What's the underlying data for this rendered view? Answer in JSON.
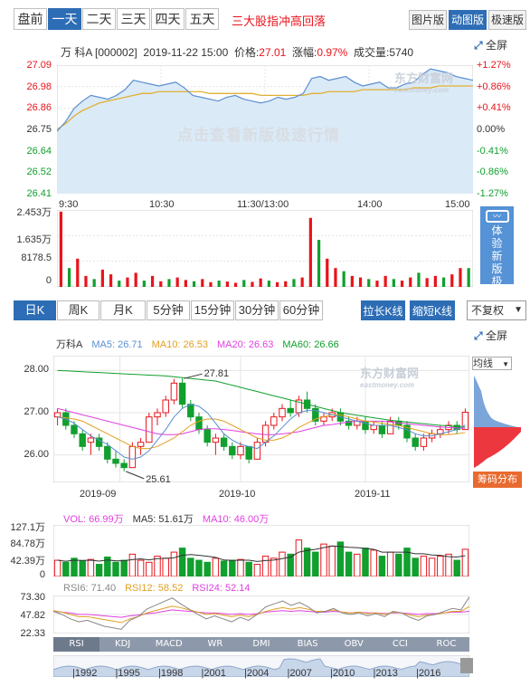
{
  "top_tabs": [
    {
      "label": "盘前",
      "active": false
    },
    {
      "label": "一天",
      "active": true
    },
    {
      "label": "二天",
      "active": false
    },
    {
      "label": "三天",
      "active": false
    },
    {
      "label": "四天",
      "active": false
    },
    {
      "label": "五天",
      "active": false
    }
  ],
  "headline": "三大股指冲高回落",
  "right_buttons": [
    {
      "label": "图片版",
      "active": false
    },
    {
      "label": "动图版",
      "active": true
    },
    {
      "label": "极速版",
      "active": false
    }
  ],
  "fullscreen": "全屏",
  "quote": {
    "name": "万 科A [000002]",
    "datetime": "2019-11-22 15:00",
    "price_label": "价格:",
    "price": "27.01",
    "change_label": "涨幅:",
    "change": "0.97%",
    "volume_label": "成交量:",
    "volume": "5740"
  },
  "watermark_logo": "东方财富网",
  "watermark_logo_sub": "eastmoney.com",
  "watermark_ad": "点击查看新版极速行情",
  "side_ad": "体验新版极速行情",
  "colors": {
    "up": "#e8141b",
    "down": "#119f2e",
    "line": "#5b8fd1",
    "avg": "#e0b030",
    "accent": "#2d6db5"
  },
  "chart_data": [
    {
      "type": "line",
      "name": "intraday",
      "y_ticks_left": [
        "27.09",
        "26.98",
        "26.86",
        "26.75",
        "26.64",
        "26.52",
        "26.41"
      ],
      "y_ticks_right": [
        "+1.27%",
        "+0.86%",
        "+0.41%",
        "0.00%",
        "-0.41%",
        "-0.86%",
        "-1.27%"
      ],
      "x_ticks": [
        "9:30",
        "10:30",
        "11:30/13:00",
        "14:00",
        "15:00"
      ],
      "ylim": [
        26.41,
        27.09
      ],
      "prev_close": 26.75,
      "price": [
        26.74,
        26.79,
        26.86,
        26.9,
        26.93,
        26.92,
        26.91,
        26.93,
        26.96,
        27.01,
        27.0,
        26.99,
        26.98,
        26.99,
        27.0,
        26.97,
        26.93,
        26.92,
        26.91,
        26.9,
        26.92,
        26.93,
        26.91,
        26.9,
        26.89,
        26.9,
        26.92,
        26.91,
        26.92,
        26.94,
        27.02,
        27.03,
        27.01,
        27.02,
        27.03,
        27.0,
        26.98,
        26.99,
        27.0,
        26.97,
        26.97,
        26.99,
        27.0,
        27.04,
        27.07,
        27.06,
        27.05,
        27.03,
        27.02,
        27.01
      ],
      "avg": [
        26.75,
        26.78,
        26.82,
        26.85,
        26.87,
        26.89,
        26.9,
        26.91,
        26.92,
        26.93,
        26.94,
        26.94,
        26.95,
        26.95,
        26.95,
        26.95,
        26.95,
        26.95,
        26.94,
        26.94,
        26.94,
        26.94,
        26.94,
        26.94,
        26.93,
        26.93,
        26.93,
        26.93,
        26.93,
        26.93,
        26.94,
        26.94,
        26.95,
        26.95,
        26.95,
        26.95,
        26.96,
        26.96,
        26.96,
        26.96,
        26.96,
        26.96,
        26.97,
        26.97,
        26.97,
        26.98,
        26.98,
        26.98,
        26.98,
        26.98
      ]
    },
    {
      "type": "bar",
      "name": "intraday volume",
      "y_ticks": [
        "2.453万",
        "1.635万",
        "8178.5",
        "0"
      ],
      "ylim": [
        0,
        24530
      ],
      "values": [
        24000,
        6000,
        9000,
        3500,
        2500,
        5500,
        4000,
        2000,
        3000,
        4500,
        2000,
        3500,
        1800,
        2500,
        3000,
        2200,
        1800,
        2500,
        1500,
        2000,
        1700,
        1300,
        2200,
        1600,
        2700,
        2000,
        1500,
        1800,
        2500,
        3000,
        22000,
        15000,
        9000,
        6000,
        5000,
        3500,
        3000,
        2500,
        2000,
        3500,
        2500,
        2000,
        3000,
        4500,
        2800,
        3500,
        3000,
        4000,
        6000,
        6000
      ]
    },
    {
      "type": "candlestick",
      "name": "万科A",
      "legend": [
        {
          "label": "万科A",
          "color": "#333"
        },
        {
          "label": "MA5: 26.71",
          "color": "#5b8fd1"
        },
        {
          "label": "MA10: 26.53",
          "color": "#e0a020"
        },
        {
          "label": "MA20: 26.63",
          "color": "#e040e0"
        },
        {
          "label": "MA60: 26.66",
          "color": "#119f2e"
        }
      ],
      "y_ticks": [
        "28.00",
        "27.00",
        "26.00"
      ],
      "ylim": [
        25.35,
        28.35
      ],
      "x_ticks": [
        "2019-09",
        "2019-10",
        "2019-11"
      ],
      "annotations": [
        "27.81",
        "25.61"
      ],
      "ohlc": [
        [
          26.9,
          27.1,
          26.7,
          27.0
        ],
        [
          27.0,
          27.1,
          26.6,
          26.7
        ],
        [
          26.7,
          26.8,
          26.4,
          26.5
        ],
        [
          26.5,
          26.6,
          26.1,
          26.2
        ],
        [
          26.3,
          26.5,
          26.0,
          26.4
        ],
        [
          26.4,
          26.5,
          26.1,
          26.2
        ],
        [
          26.2,
          26.3,
          25.8,
          25.9
        ],
        [
          25.9,
          26.1,
          25.7,
          25.8
        ],
        [
          25.8,
          25.9,
          25.61,
          25.7
        ],
        [
          25.7,
          26.3,
          25.7,
          26.2
        ],
        [
          26.2,
          26.4,
          26.0,
          26.3
        ],
        [
          26.3,
          27.0,
          26.3,
          26.9
        ],
        [
          26.9,
          27.1,
          26.7,
          27.0
        ],
        [
          27.0,
          27.4,
          26.9,
          27.3
        ],
        [
          27.3,
          27.8,
          27.2,
          27.7
        ],
        [
          27.7,
          27.81,
          27.1,
          27.2
        ],
        [
          27.2,
          27.3,
          26.8,
          26.9
        ],
        [
          26.9,
          27.0,
          26.5,
          26.6
        ],
        [
          26.6,
          26.7,
          26.2,
          26.3
        ],
        [
          26.3,
          26.5,
          26.0,
          26.4
        ],
        [
          26.4,
          26.5,
          26.1,
          26.2
        ],
        [
          26.2,
          26.3,
          25.9,
          26.0
        ],
        [
          26.0,
          26.3,
          25.9,
          26.2
        ],
        [
          26.2,
          26.2,
          25.8,
          25.9
        ],
        [
          25.9,
          26.4,
          25.9,
          26.3
        ],
        [
          26.3,
          26.8,
          26.2,
          26.7
        ],
        [
          26.7,
          27.0,
          26.6,
          26.9
        ],
        [
          26.9,
          27.2,
          26.8,
          27.1
        ],
        [
          27.1,
          27.3,
          26.9,
          27.0
        ],
        [
          27.0,
          27.4,
          26.9,
          27.3
        ],
        [
          27.3,
          27.5,
          27.0,
          27.1
        ],
        [
          27.1,
          27.2,
          26.7,
          26.8
        ],
        [
          26.8,
          27.0,
          26.7,
          26.9
        ],
        [
          26.9,
          27.1,
          26.8,
          27.0
        ],
        [
          27.0,
          27.1,
          26.7,
          26.8
        ],
        [
          26.8,
          26.9,
          26.6,
          26.7
        ],
        [
          26.7,
          26.9,
          26.6,
          26.8
        ],
        [
          26.8,
          26.9,
          26.5,
          26.6
        ],
        [
          26.6,
          26.8,
          26.5,
          26.7
        ],
        [
          26.7,
          26.8,
          26.4,
          26.5
        ],
        [
          26.5,
          26.9,
          26.5,
          26.8
        ],
        [
          26.8,
          26.9,
          26.6,
          26.7
        ],
        [
          26.7,
          26.8,
          26.3,
          26.4
        ],
        [
          26.4,
          26.5,
          26.1,
          26.2
        ],
        [
          26.2,
          26.5,
          26.1,
          26.4
        ],
        [
          26.4,
          26.6,
          26.3,
          26.5
        ],
        [
          26.5,
          26.7,
          26.4,
          26.6
        ],
        [
          26.6,
          26.8,
          26.5,
          26.7
        ],
        [
          26.7,
          26.8,
          26.5,
          26.6
        ],
        [
          26.6,
          27.1,
          26.6,
          27.01
        ]
      ],
      "ma5": [
        26.9,
        26.85,
        26.75,
        26.6,
        26.45,
        26.35,
        26.25,
        26.1,
        25.95,
        25.9,
        25.95,
        26.1,
        26.35,
        26.6,
        26.9,
        27.1,
        27.2,
        27.15,
        27.0,
        26.75,
        26.5,
        26.35,
        26.25,
        26.2,
        26.15,
        26.3,
        26.45,
        26.65,
        26.85,
        27.0,
        27.05,
        27.05,
        27.0,
        26.95,
        26.9,
        26.85,
        26.8,
        26.75,
        26.7,
        26.7,
        26.7,
        26.65,
        26.6,
        26.5,
        26.45,
        26.45,
        26.5,
        26.55,
        26.6,
        26.71
      ],
      "ma10": [
        26.9,
        26.88,
        26.85,
        26.8,
        26.7,
        26.6,
        26.5,
        26.4,
        26.3,
        26.2,
        26.15,
        26.15,
        26.2,
        26.3,
        26.4,
        26.55,
        26.7,
        26.8,
        26.85,
        26.85,
        26.8,
        26.7,
        26.6,
        26.5,
        26.4,
        26.35,
        26.35,
        26.4,
        26.5,
        26.65,
        26.75,
        26.85,
        26.9,
        26.95,
        26.95,
        26.9,
        26.85,
        26.8,
        26.78,
        26.75,
        26.72,
        26.7,
        26.65,
        26.6,
        26.55,
        26.5,
        26.48,
        26.48,
        26.5,
        26.53
      ],
      "ma20": [
        27.1,
        27.05,
        27.0,
        26.95,
        26.9,
        26.85,
        26.8,
        26.75,
        26.7,
        26.65,
        26.6,
        26.55,
        26.5,
        26.48,
        26.48,
        26.5,
        26.55,
        26.6,
        26.62,
        26.62,
        26.6,
        26.58,
        26.55,
        26.52,
        26.5,
        26.48,
        26.48,
        26.5,
        26.52,
        26.55,
        26.6,
        26.65,
        26.7,
        26.72,
        26.75,
        26.78,
        26.8,
        26.8,
        26.8,
        26.8,
        26.78,
        26.76,
        26.74,
        26.72,
        26.7,
        26.68,
        26.66,
        26.65,
        26.64,
        26.63
      ],
      "ma60": [
        28.0,
        27.99,
        27.98,
        27.97,
        27.96,
        27.95,
        27.94,
        27.93,
        27.92,
        27.91,
        27.9,
        27.89,
        27.88,
        27.87,
        27.85,
        27.83,
        27.81,
        27.79,
        27.77,
        27.75,
        27.7,
        27.65,
        27.6,
        27.55,
        27.5,
        27.45,
        27.4,
        27.35,
        27.3,
        27.25,
        27.2,
        27.15,
        27.1,
        27.05,
        27.0,
        26.97,
        26.94,
        26.91,
        26.88,
        26.85,
        26.82,
        26.8,
        26.78,
        26.76,
        26.74,
        26.72,
        26.7,
        26.69,
        26.67,
        26.66
      ]
    },
    {
      "type": "bar",
      "name": "VOL",
      "legend": [
        {
          "label": "VOL: 66.99万",
          "color": "#e040e0"
        },
        {
          "label": "MA5: 51.61万",
          "color": "#333"
        },
        {
          "label": "MA10: 46.00万",
          "color": "#e040e0"
        }
      ],
      "y_ticks": [
        "127.1万",
        "84.78万",
        "42.39万",
        "0"
      ],
      "ylim": [
        0,
        127.1
      ],
      "values": [
        40,
        35,
        45,
        38,
        42,
        30,
        48,
        35,
        40,
        55,
        40,
        35,
        50,
        45,
        60,
        70,
        45,
        40,
        35,
        45,
        38,
        40,
        42,
        35,
        30,
        50,
        45,
        60,
        55,
        90,
        70,
        60,
        80,
        75,
        85,
        60,
        55,
        70,
        65,
        50,
        60,
        55,
        70,
        45,
        50,
        45,
        50,
        55,
        40,
        66.99
      ]
    },
    {
      "type": "line",
      "name": "RSI",
      "legend": [
        {
          "label": "RSI6: 71.40",
          "color": "#888"
        },
        {
          "label": "RSI12: 58.52",
          "color": "#e0a020"
        },
        {
          "label": "RSI24: 52.14",
          "color": "#e040e0"
        }
      ],
      "y_ticks": [
        "73.30",
        "47.82",
        "22.33"
      ],
      "ylim": [
        22.33,
        73.3
      ],
      "rsi6": [
        52,
        48,
        42,
        38,
        40,
        36,
        32,
        30,
        28,
        40,
        45,
        55,
        60,
        65,
        70,
        62,
        55,
        48,
        42,
        46,
        42,
        38,
        44,
        40,
        48,
        58,
        62,
        66,
        60,
        64,
        58,
        50,
        52,
        56,
        50,
        48,
        50,
        46,
        49,
        45,
        52,
        50,
        44,
        40,
        46,
        48,
        52,
        56,
        54,
        71.4
      ],
      "rsi12": [
        53,
        51,
        48,
        45,
        45,
        43,
        41,
        39,
        37,
        42,
        45,
        50,
        53,
        56,
        59,
        57,
        54,
        51,
        48,
        49,
        47,
        45,
        47,
        45,
        48,
        52,
        55,
        57,
        55,
        57,
        55,
        52,
        52,
        54,
        51,
        50,
        51,
        49,
        50,
        48,
        51,
        50,
        47,
        45,
        47,
        48,
        50,
        52,
        52,
        58.52
      ],
      "rsi24": [
        52,
        51,
        50,
        48,
        48,
        47,
        46,
        45,
        44,
        46,
        47,
        49,
        50,
        52,
        54,
        53,
        52,
        51,
        50,
        50,
        49,
        48,
        49,
        48,
        49,
        51,
        52,
        53,
        52,
        53,
        52,
        51,
        51,
        52,
        51,
        50,
        51,
        50,
        50,
        49,
        50,
        50,
        49,
        48,
        49,
        49,
        50,
        51,
        51,
        52.14
      ]
    }
  ],
  "indicator_tabs": [
    "RSI",
    "KDJ",
    "MACD",
    "WR",
    "DMI",
    "BIAS",
    "OBV",
    "CCI",
    "ROC"
  ],
  "timeline_years": [
    "1992",
    "1995",
    "1998",
    "2001",
    "2004",
    "2007",
    "2010",
    "2013",
    "2016"
  ],
  "k_tabs": [
    {
      "label": "日K",
      "active": true
    },
    {
      "label": "周K",
      "active": false
    },
    {
      "label": "月K",
      "active": false
    },
    {
      "label": "5分钟",
      "active": false
    },
    {
      "label": "15分钟",
      "active": false
    },
    {
      "label": "30分钟",
      "active": false
    },
    {
      "label": "60分钟",
      "active": false
    }
  ],
  "extra_buttons": [
    "拉长K线",
    "缩短K线"
  ],
  "fq_select": "不复权",
  "ma_select": "均线",
  "chip_label": "筹码分布"
}
